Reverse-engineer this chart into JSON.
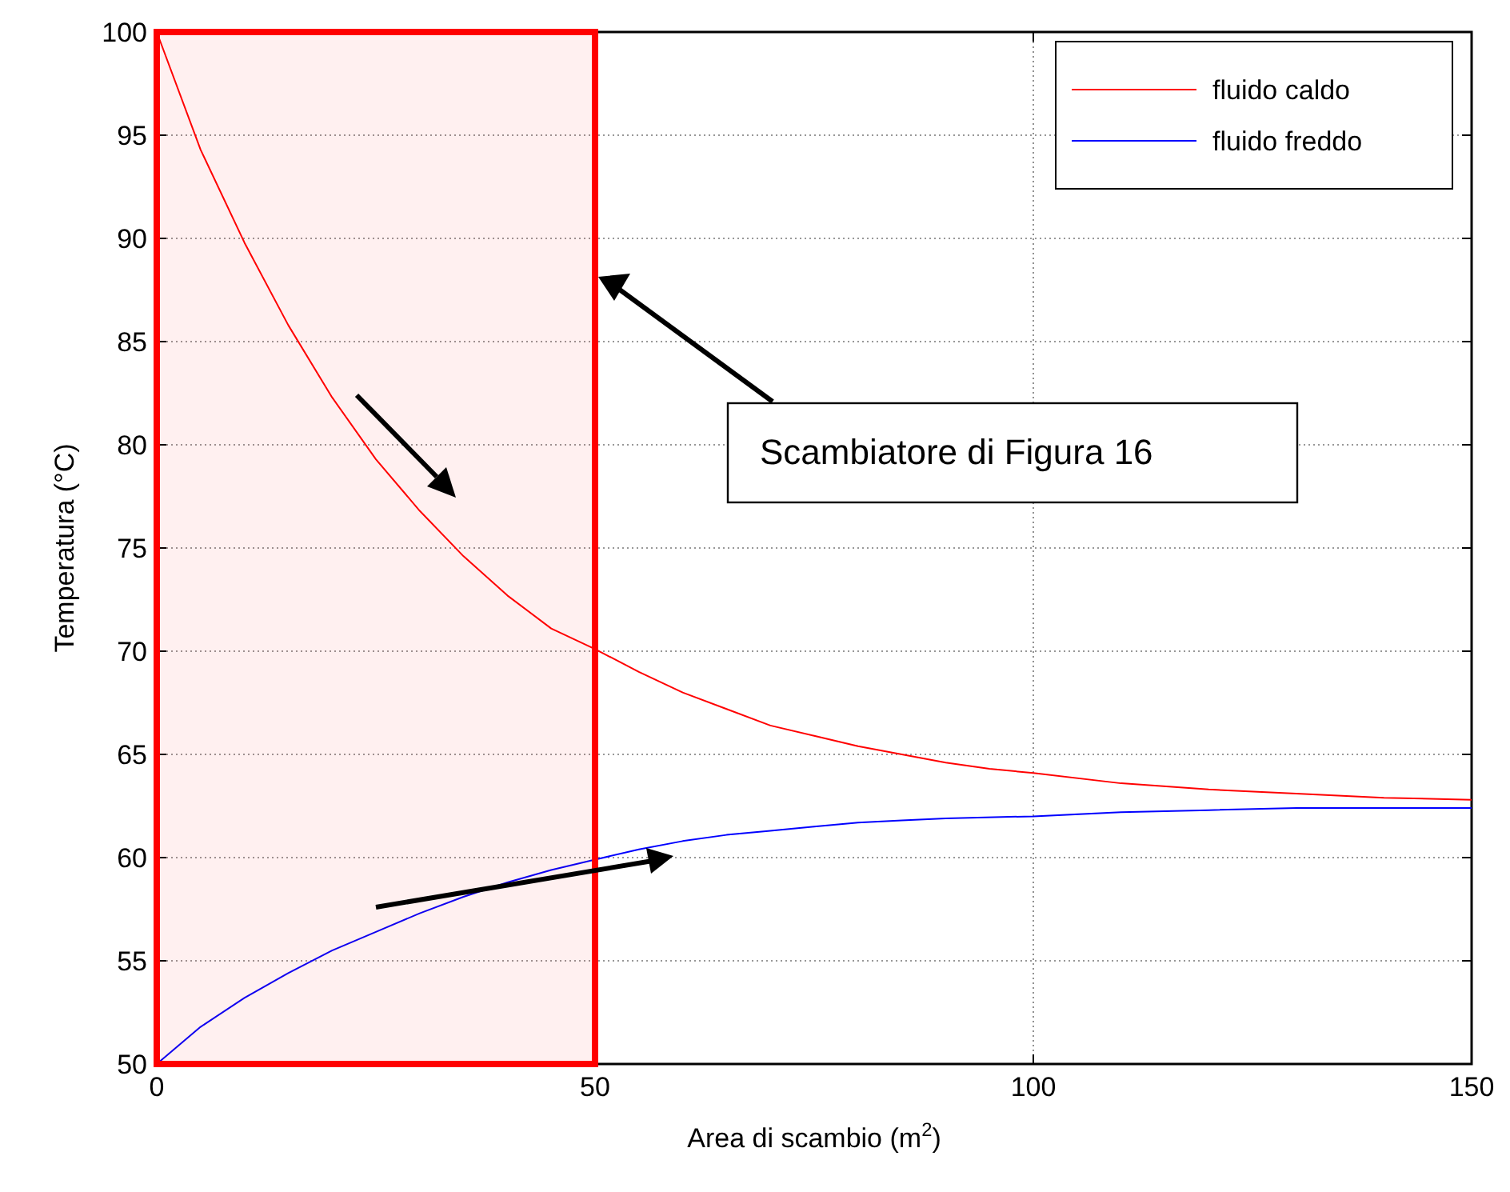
{
  "chart_data": {
    "type": "line",
    "xlabel": "Area di scambio (m$^{2}$)",
    "ylabel": "Temperatura (°C)",
    "xlim": [
      0,
      150
    ],
    "xticks": [
      0,
      50,
      100,
      150
    ],
    "ylim": [
      50,
      100
    ],
    "yticks": [
      50,
      55,
      60,
      65,
      70,
      75,
      80,
      85,
      90,
      95,
      100
    ],
    "grid": true,
    "legend": "top right",
    "marker": "none",
    "line_style": "solid",
    "series": [
      {
        "name": "fluido caldo",
        "color": "#ff0000",
        "x": [
          0,
          5,
          10,
          15,
          20,
          25,
          30,
          35,
          40,
          45,
          50,
          55,
          60,
          65,
          70,
          75,
          80,
          85,
          90,
          95,
          100,
          110,
          120,
          130,
          140,
          150
        ],
        "values": [
          100,
          94.3,
          89.8,
          85.8,
          82.3,
          79.3,
          76.8,
          74.6,
          72.7,
          71.1,
          70.1,
          69.0,
          68.0,
          67.2,
          66.4,
          65.9,
          65.4,
          65.0,
          64.6,
          64.3,
          64.1,
          63.6,
          63.3,
          63.1,
          62.9,
          62.8
        ]
      },
      {
        "name": "fluido freddo",
        "color": "#0000ff",
        "x": [
          0,
          5,
          10,
          15,
          20,
          25,
          30,
          35,
          40,
          45,
          50,
          55,
          60,
          65,
          70,
          75,
          80,
          85,
          90,
          100,
          110,
          120,
          130,
          150
        ],
        "values": [
          50,
          51.8,
          53.2,
          54.4,
          55.5,
          56.4,
          57.3,
          58.1,
          58.8,
          59.4,
          59.9,
          60.4,
          60.8,
          61.1,
          61.3,
          61.5,
          61.7,
          61.8,
          61.9,
          62.0,
          62.2,
          62.3,
          62.4,
          62.4
        ]
      }
    ],
    "bands": [
      {
        "axis": "x",
        "from": 0,
        "to": 50,
        "color": "#ff0000"
      }
    ],
    "annotations": [
      "Scambiatore di Figura 16"
    ]
  }
}
